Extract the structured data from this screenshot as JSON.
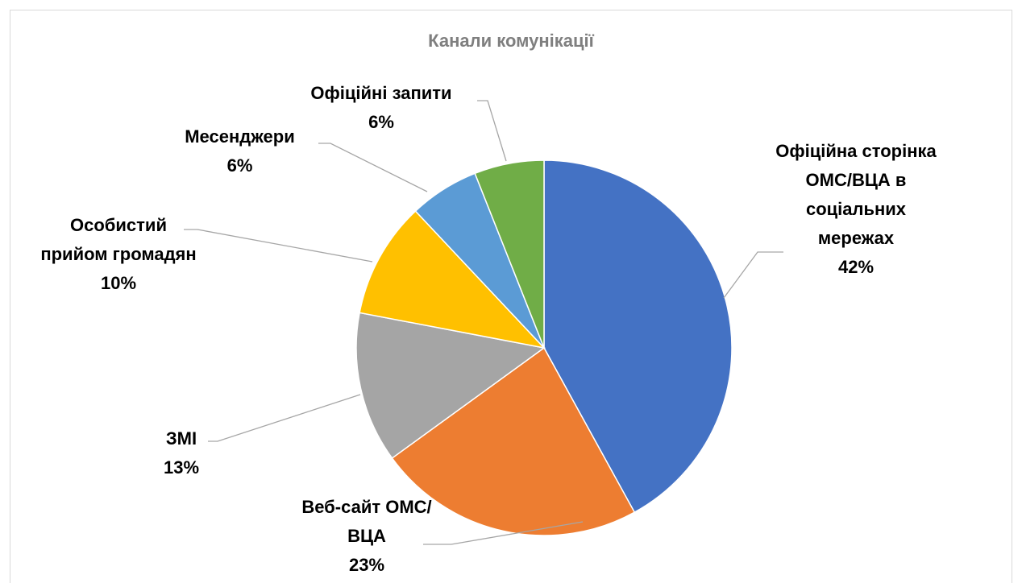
{
  "chart_data": {
    "type": "pie",
    "title": "Канали комунікації",
    "categories": [
      "Офіційна сторінка ОМС/ВЦА в соціальних мережах",
      "Веб-сайт ОМС/ВЦА",
      "ЗМІ",
      "Особистий прийом громадян",
      "Месенджери",
      "Офіційні запити"
    ],
    "values": [
      42,
      23,
      13,
      10,
      6,
      6
    ],
    "value_labels": [
      "42%",
      "23%",
      "13%",
      "10%",
      "6%",
      "6%"
    ],
    "colors": [
      "#4472c4",
      "#ed7d31",
      "#a5a5a5",
      "#ffc000",
      "#5b9bd5",
      "#70ad47"
    ]
  }
}
